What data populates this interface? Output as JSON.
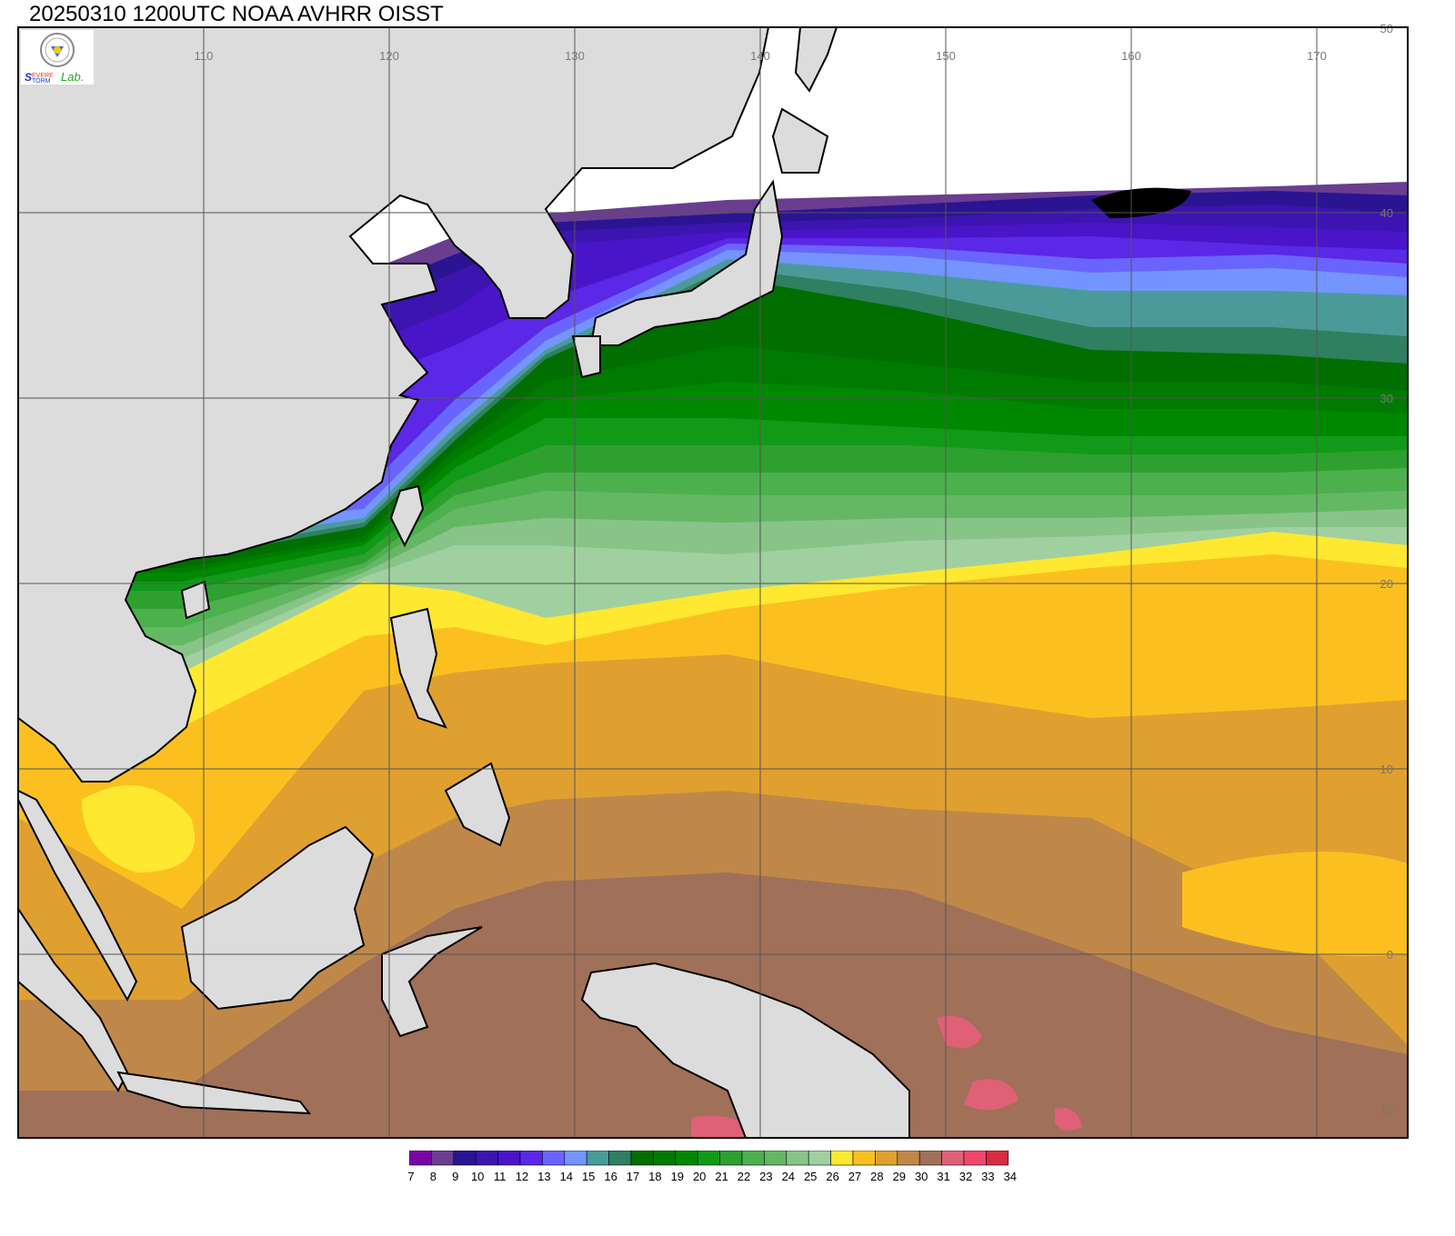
{
  "title": "20250310 1200UTC NOAA AVHRR OISST",
  "logo": {
    "text": "Severe Storm Lab."
  },
  "map": {
    "lon_labels": [
      "110",
      "120",
      "130",
      "140",
      "150",
      "160",
      "170"
    ],
    "lat_labels": [
      "50",
      "40",
      "30",
      "20",
      "10",
      "0",
      "-10"
    ],
    "land_color": "#dcdcdc",
    "grid_color": "#555555"
  },
  "colorbar": {
    "levels": [
      "7",
      "8",
      "9",
      "10",
      "11",
      "12",
      "13",
      "14",
      "15",
      "16",
      "17",
      "18",
      "19",
      "20",
      "21",
      "22",
      "23",
      "24",
      "25",
      "26",
      "27",
      "28",
      "29",
      "30",
      "31",
      "32",
      "33",
      "34"
    ],
    "colors": [
      "#7b05a3",
      "#6a3d91",
      "#2a1491",
      "#3c14b0",
      "#4a14c8",
      "#5a28e6",
      "#6a64ff",
      "#7494ff",
      "#4a9a9a",
      "#2e8060",
      "#006e00",
      "#007a00",
      "#008800",
      "#109a18",
      "#2ea030",
      "#4cb04c",
      "#64b864",
      "#88c488",
      "#a0d0a0",
      "#ffe830",
      "#fbc020",
      "#e0a030",
      "#c08848",
      "#a07058",
      "#e06078",
      "#f0486a",
      "#d82c40"
    ]
  }
}
